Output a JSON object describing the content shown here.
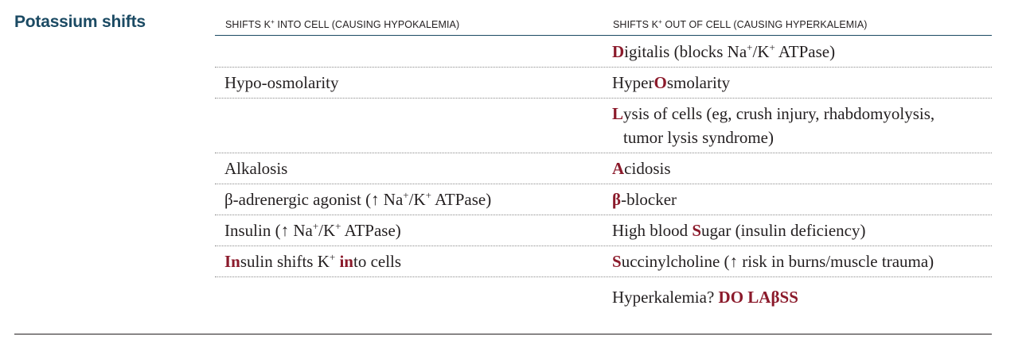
{
  "section_title": "Potassium shifts",
  "columns": {
    "left_header": {
      "pre": "SHIFTS K",
      "sup": "+",
      "post": " INTO CELL (CAUSING HYPOKALEMIA)"
    },
    "right_header": {
      "pre": "SHIFTS K",
      "sup": "+",
      "post": " OUT OF CELL (CAUSING HYPERKALEMIA)"
    }
  },
  "rows": {
    "r1": {
      "left": "",
      "right_hl": "D",
      "right_rest": "igitalis (blocks Na",
      "right_sup1": "+",
      "right_mid": "/K",
      "right_sup2": "+",
      "right_end": " ATPase)"
    },
    "r2": {
      "left": "Hypo-osmolarity",
      "right_pre": "Hyper",
      "right_hl": "O",
      "right_post": "smolarity"
    },
    "r3": {
      "left": "",
      "right_hl": "L",
      "right_line1": "ysis of cells (eg, crush injury, rhabdomyolysis,",
      "right_line2": "tumor lysis syndrome)"
    },
    "r4": {
      "left": "Alkalosis",
      "right_hl": "A",
      "right_post": "cidosis"
    },
    "r5": {
      "left_pre": "β-adrenergic agonist (↑ Na",
      "left_sup1": "+",
      "left_mid": "/K",
      "left_sup2": "+",
      "left_end": " ATPase)",
      "right_hl": "β",
      "right_post": "-blocker"
    },
    "r6": {
      "left_pre": "Insulin (↑ Na",
      "left_sup1": "+",
      "left_mid": "/K",
      "left_sup2": "+",
      "left_end": " ATPase)",
      "right_pre": "High blood ",
      "right_hl": "S",
      "right_post": "ugar (insulin deficiency)"
    },
    "r7": {
      "left_hl1": "In",
      "left_mid1": "sulin shifts K",
      "left_sup": "+",
      "left_sp": " ",
      "left_hl2": "in",
      "left_end": "to cells",
      "right_hl": "S",
      "right_post": "uccinylcholine (↑ risk in burns/muscle trauma)"
    },
    "r8": {
      "left": "",
      "right_pre": "Hyperkalemia? ",
      "right_mnemonic": "DO LAβSS"
    }
  }
}
